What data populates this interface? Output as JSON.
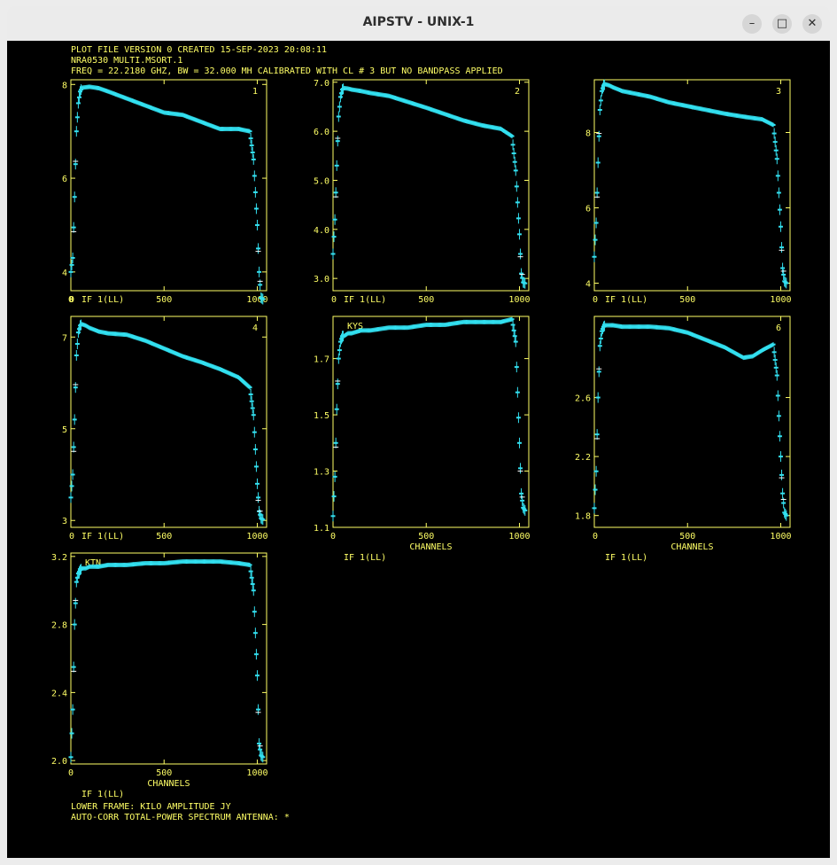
{
  "window": {
    "title": "AIPSTV - UNIX-1",
    "minimize_glyph": "–",
    "maximize_glyph": "□",
    "close_glyph": "✕"
  },
  "header": {
    "line1": "PLOT FILE VERSION 0  CREATED 15-SEP-2023 20:08:11",
    "line2": "NRA0530   MULTI.MSORT.1",
    "line3": "FREQ = 22.2180 GHZ, BW = 32.000 MH   CALIBRATED WITH CL # 3 BUT NO BANDPASS APPLIED"
  },
  "footer": {
    "line1": "LOWER FRAME: KILO AMPLITUDE JY",
    "line2": "AUTO-CORR TOTAL-POWER SPECTRUM    ANTENNA: *"
  },
  "colors": {
    "axis": "#ffff66",
    "trace": "#33e0f0",
    "background": "#000000"
  },
  "chart_data": [
    {
      "type": "scatter",
      "label": "1",
      "x_ticks": [
        "0",
        "500",
        "1000"
      ],
      "y_ticks": [
        "4",
        "6",
        "8"
      ],
      "ylim": [
        3.6,
        8.1
      ],
      "xlim": [
        0,
        1050
      ],
      "bottom_left": "0",
      "if_label": "IF 1(LL)",
      "xlabel": "",
      "sub_label": "",
      "x": [
        0,
        10,
        20,
        30,
        40,
        50,
        60,
        80,
        100,
        150,
        200,
        300,
        400,
        500,
        600,
        700,
        800,
        900,
        960,
        980,
        1000,
        1010,
        1020,
        1030
      ],
      "y": [
        4.0,
        4.3,
        5.6,
        7.0,
        7.6,
        7.85,
        7.93,
        7.94,
        7.95,
        7.92,
        7.85,
        7.7,
        7.55,
        7.4,
        7.35,
        7.2,
        7.05,
        7.05,
        7.0,
        6.4,
        5.0,
        4.0,
        3.45,
        3.42
      ]
    },
    {
      "type": "scatter",
      "label": "2",
      "x_ticks": [
        "500",
        "1000"
      ],
      "y_ticks": [
        "3.0",
        "4.0",
        "5.0",
        "6.0",
        "7.0"
      ],
      "ylim": [
        2.75,
        7.05
      ],
      "xlim": [
        0,
        1050
      ],
      "bottom_left": "0",
      "if_label": "IF 1(LL)",
      "xlabel": "",
      "sub_label": "",
      "x": [
        0,
        10,
        20,
        30,
        40,
        50,
        60,
        80,
        100,
        150,
        200,
        300,
        400,
        500,
        600,
        700,
        800,
        900,
        960,
        980,
        1000,
        1010,
        1020,
        1030
      ],
      "y": [
        3.5,
        4.2,
        5.3,
        6.3,
        6.7,
        6.85,
        6.88,
        6.87,
        6.85,
        6.82,
        6.78,
        6.72,
        6.6,
        6.48,
        6.35,
        6.22,
        6.12,
        6.05,
        5.9,
        5.2,
        3.9,
        3.1,
        2.92,
        2.9
      ]
    },
    {
      "type": "scatter",
      "label": "3",
      "x_ticks": [
        "500",
        "1000"
      ],
      "y_ticks": [
        "4",
        "6",
        "8"
      ],
      "ylim": [
        3.8,
        9.4
      ],
      "xlim": [
        0,
        1050
      ],
      "bottom_left": "0",
      "if_label": "IF 1(LL)",
      "xlabel": "",
      "sub_label": "",
      "x": [
        0,
        10,
        20,
        30,
        40,
        50,
        60,
        80,
        100,
        150,
        200,
        300,
        400,
        500,
        600,
        700,
        800,
        900,
        960,
        980,
        1000,
        1010,
        1020,
        1030
      ],
      "y": [
        4.7,
        5.6,
        7.2,
        8.6,
        9.1,
        9.25,
        9.28,
        9.25,
        9.2,
        9.1,
        9.05,
        8.95,
        8.8,
        8.7,
        8.6,
        8.5,
        8.42,
        8.35,
        8.2,
        7.3,
        5.5,
        4.4,
        4.05,
        4.0
      ]
    },
    {
      "type": "scatter",
      "label": "4",
      "x_ticks": [
        "500",
        "1000"
      ],
      "y_ticks": [
        "3",
        "5",
        "7"
      ],
      "ylim": [
        2.85,
        7.45
      ],
      "xlim": [
        0,
        1050
      ],
      "bottom_left": "0",
      "if_label": "IF 1(LL)",
      "xlabel": "",
      "sub_label": "",
      "x": [
        0,
        10,
        20,
        30,
        40,
        50,
        60,
        80,
        100,
        150,
        200,
        300,
        400,
        500,
        600,
        700,
        800,
        900,
        960,
        980,
        1000,
        1010,
        1020,
        1030
      ],
      "y": [
        3.5,
        4.0,
        5.2,
        6.6,
        7.1,
        7.25,
        7.28,
        7.25,
        7.2,
        7.12,
        7.08,
        7.05,
        6.92,
        6.75,
        6.58,
        6.45,
        6.3,
        6.12,
        5.9,
        5.3,
        3.8,
        3.2,
        3.05,
        3.02
      ]
    },
    {
      "type": "scatter",
      "label": "",
      "x_ticks": [
        "0",
        "500",
        "1000"
      ],
      "y_ticks": [
        "1.1",
        "1.3",
        "1.5",
        "1.7"
      ],
      "ylim": [
        1.1,
        1.85
      ],
      "xlim": [
        0,
        1050
      ],
      "bottom_left": "",
      "if_label": "IF 1(LL)",
      "xlabel": "CHANNELS",
      "sub_label": "KYS",
      "x": [
        0,
        10,
        20,
        30,
        40,
        50,
        60,
        80,
        100,
        150,
        200,
        300,
        400,
        500,
        600,
        700,
        800,
        900,
        960,
        980,
        1000,
        1010,
        1020,
        1030
      ],
      "y": [
        1.14,
        1.28,
        1.52,
        1.7,
        1.76,
        1.78,
        1.78,
        1.79,
        1.79,
        1.8,
        1.8,
        1.81,
        1.81,
        1.82,
        1.82,
        1.83,
        1.83,
        1.83,
        1.84,
        1.76,
        1.4,
        1.22,
        1.17,
        1.16
      ]
    },
    {
      "type": "scatter",
      "label": "6",
      "x_ticks": [
        "500",
        "1000"
      ],
      "y_ticks": [
        "1.8",
        "2.2",
        "2.6"
      ],
      "ylim": [
        1.72,
        3.15
      ],
      "xlim": [
        0,
        1050
      ],
      "bottom_left": "0",
      "if_label": "IF 1(LL)",
      "xlabel": "CHANNELS",
      "sub_label": "",
      "x": [
        0,
        10,
        20,
        30,
        40,
        50,
        60,
        80,
        100,
        150,
        200,
        300,
        400,
        500,
        600,
        700,
        800,
        850,
        900,
        960,
        980,
        1000,
        1010,
        1020,
        1030
      ],
      "y": [
        1.85,
        2.1,
        2.6,
        2.95,
        3.05,
        3.08,
        3.09,
        3.09,
        3.09,
        3.08,
        3.08,
        3.08,
        3.07,
        3.04,
        2.99,
        2.94,
        2.87,
        2.88,
        2.92,
        2.96,
        2.75,
        2.2,
        1.95,
        1.82,
        1.8
      ]
    },
    {
      "type": "scatter",
      "label": "",
      "x_ticks": [
        "0",
        "500",
        "1000"
      ],
      "y_ticks": [
        "2.0",
        "2.4",
        "2.8",
        "3.2"
      ],
      "ylim": [
        1.98,
        3.22
      ],
      "xlim": [
        0,
        1050
      ],
      "bottom_left": "",
      "if_label": "IF 1(LL)",
      "xlabel": "CHANNELS",
      "sub_label": "KTN",
      "x": [
        0,
        10,
        20,
        30,
        40,
        50,
        60,
        80,
        100,
        150,
        200,
        300,
        400,
        500,
        600,
        700,
        800,
        900,
        960,
        980,
        1000,
        1010,
        1020,
        1030
      ],
      "y": [
        2.02,
        2.3,
        2.8,
        3.05,
        3.1,
        3.12,
        3.13,
        3.13,
        3.14,
        3.14,
        3.15,
        3.15,
        3.16,
        3.16,
        3.17,
        3.17,
        3.17,
        3.16,
        3.15,
        3.0,
        2.5,
        2.1,
        2.03,
        2.02
      ]
    }
  ]
}
